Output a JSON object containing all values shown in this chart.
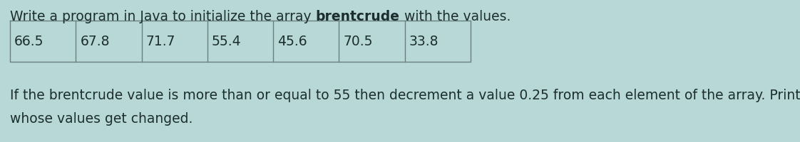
{
  "background_color": "#b8d8d8",
  "title_normal1": "Write a program in Java to initialize the array ",
  "title_bold": "brentcrude",
  "title_normal2": " with the values.",
  "table_values": [
    "66.5",
    "67.8",
    "71.7",
    "55.4",
    "45.6",
    "70.5",
    "33.8"
  ],
  "body_text_line1": "If the brentcrude value is more than or equal to 55 then decrement a value 0.25 from each element of the array. Print the elements",
  "body_text_line2": "whose values get changed.",
  "text_color": "#1c2e2e",
  "table_border_color": "#6a7f7f",
  "font_size": 13.5,
  "fig_width": 11.22,
  "fig_height": 2.01,
  "dpi": 100
}
